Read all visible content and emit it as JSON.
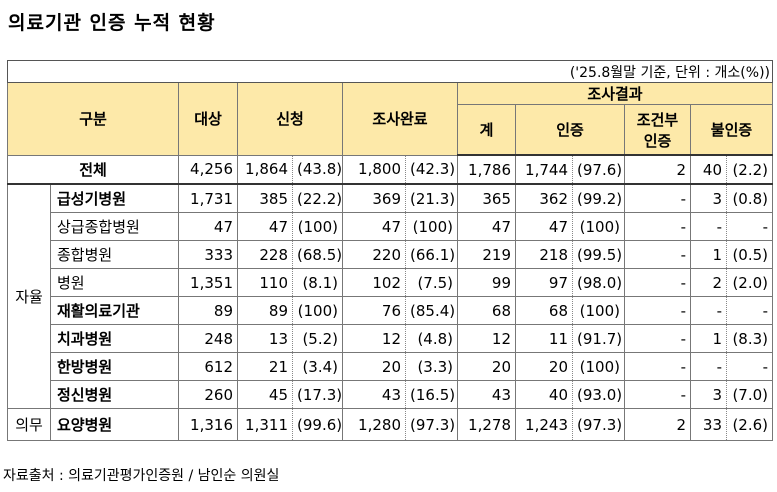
{
  "title": "의료기관 인증 누적 현황",
  "table": {
    "note": "('25.8월말 기준, 단위 : 개소(%))",
    "header": {
      "group": "구분",
      "target": "대상",
      "applied": "신청",
      "completed": "조사완료",
      "result": "조사결과",
      "total": "계",
      "certified": "인증",
      "conditional": "조건부 인증",
      "failed": "불인증"
    },
    "total_row": {
      "name": "전체",
      "cells": [
        "4,256",
        "1,864",
        "(43.8)",
        "1,800",
        "(42.3)",
        "1,786",
        "1,744",
        "(97.6)",
        "2",
        "40",
        "(2.2)"
      ]
    },
    "groups": [
      {
        "label": "자율",
        "rows": [
          {
            "name": "급성기병원",
            "cells": [
              "1,731",
              "385",
              "(22.2)",
              "369",
              "(21.3)",
              "365",
              "362",
              "(99.2)",
              "-",
              "3",
              "(0.8)"
            ]
          },
          {
            "name": "상급종합병원",
            "cells": [
              "47",
              "47",
              "(100)",
              "47",
              "(100)",
              "47",
              "47",
              "(100)",
              "-",
              "-",
              "-"
            ]
          },
          {
            "name": "종합병원",
            "cells": [
              "333",
              "228",
              "(68.5)",
              "220",
              "(66.1)",
              "219",
              "218",
              "(99.5)",
              "-",
              "1",
              "(0.5)"
            ]
          },
          {
            "name": "병원",
            "cells": [
              "1,351",
              "110",
              "(8.1)",
              "102",
              "(7.5)",
              "99",
              "97",
              "(98.0)",
              "-",
              "2",
              "(2.0)"
            ]
          },
          {
            "name": "재활의료기관",
            "cells": [
              "89",
              "89",
              "(100)",
              "76",
              "(85.4)",
              "68",
              "68",
              "(100)",
              "-",
              "-",
              "-"
            ]
          },
          {
            "name": "치과병원",
            "cells": [
              "248",
              "13",
              "(5.2)",
              "12",
              "(4.8)",
              "12",
              "11",
              "(91.7)",
              "-",
              "1",
              "(8.3)"
            ]
          },
          {
            "name": "한방병원",
            "cells": [
              "612",
              "21",
              "(3.4)",
              "20",
              "(3.3)",
              "20",
              "20",
              "(100)",
              "-",
              "-",
              "-"
            ]
          },
          {
            "name": "정신병원",
            "cells": [
              "260",
              "45",
              "(17.3)",
              "43",
              "(16.5)",
              "43",
              "40",
              "(93.0)",
              "-",
              "3",
              "(7.0)"
            ]
          }
        ]
      },
      {
        "label": "의무",
        "rows": [
          {
            "name": "요양병원",
            "cells": [
              "1,316",
              "1,311",
              "(99.6)",
              "1,280",
              "(97.3)",
              "1,278",
              "1,243",
              "(97.3)",
              "2",
              "33",
              "(2.6)"
            ]
          }
        ]
      }
    ]
  },
  "source": "자료출처 : 의료기관평가인증원 / 남인순 의원실"
}
